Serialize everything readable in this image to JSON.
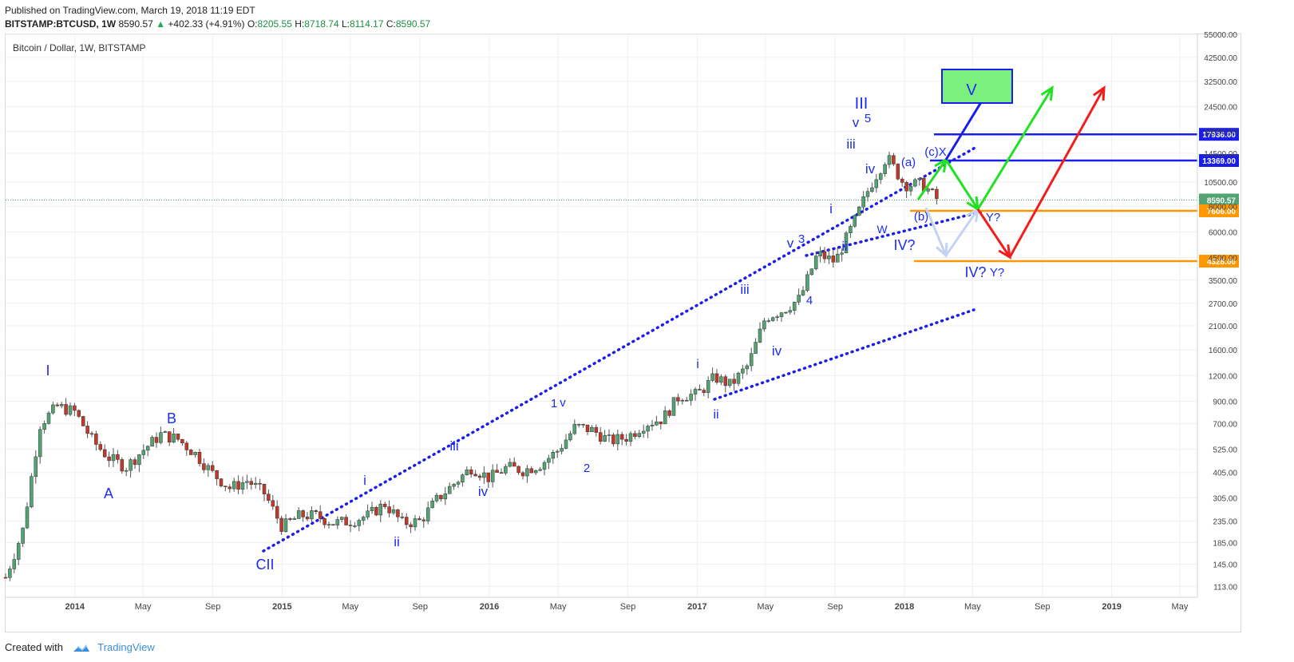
{
  "header": {
    "published": "Published on TradingView.com, March 19, 2018 11:19 EDT",
    "symbol": "BITSTAMP:BTCUSD, 1W",
    "last": "8590.57",
    "change": "+402.33 (+4.91%)",
    "o_label": "O:",
    "o_value": "8205.55",
    "h_label": "H:",
    "h_value": "8718.74",
    "l_label": "L:",
    "l_value": "8114.17",
    "c_label": "C:",
    "c_value": "8590.57"
  },
  "footer": {
    "created_with": "Created with",
    "brand": "TradingView"
  },
  "colors": {
    "up": "#53a373",
    "down": "#c0392b",
    "blue_label": "#1d2cf0",
    "orange": "#ff9800",
    "blue_line": "#1a1ee8",
    "green": "#22e022",
    "red": "#f21d1d",
    "light_blue": "#c4d3f2"
  },
  "chart_data": {
    "type": "candlestick",
    "title": "Bitcoin / Dollar, 1W, BITSTAMP",
    "scale": "log",
    "ylim": [
      100,
      55000
    ],
    "y_ticks": [
      "55000.00",
      "42500.00",
      "32500.00",
      "24500.00",
      "18500.00",
      "14500.00",
      "10500.00",
      "8000.00",
      "6000.00",
      "4500.00",
      "3500.00",
      "2700.00",
      "2100.00",
      "1600.00",
      "1200.00",
      "900.00",
      "700.00",
      "525.00",
      "405.00",
      "305.00",
      "235.00",
      "185.00",
      "145.00",
      "113.00"
    ],
    "x_ticks": [
      "2014",
      "May",
      "Sep",
      "2015",
      "May",
      "Sep",
      "2016",
      "May",
      "Sep",
      "2017",
      "May",
      "Sep",
      "2018",
      "May",
      "Sep",
      "2019",
      "May"
    ],
    "x_range": [
      "2013-09",
      "2019-06"
    ],
    "grid": true,
    "price_path": [
      [
        "2013-09",
        125
      ],
      [
        "2013-10",
        210
      ],
      [
        "2013-11",
        700
      ],
      [
        "2013-12",
        850
      ],
      [
        "2014-01",
        800
      ],
      [
        "2014-02",
        580
      ],
      [
        "2014-03",
        480
      ],
      [
        "2014-04",
        430
      ],
      [
        "2014-05",
        520
      ],
      [
        "2014-06",
        620
      ],
      [
        "2014-07",
        590
      ],
      [
        "2014-08",
        500
      ],
      [
        "2014-09",
        400
      ],
      [
        "2014-10",
        340
      ],
      [
        "2014-11",
        370
      ],
      [
        "2014-12",
        320
      ],
      [
        "2015-01",
        220
      ],
      [
        "2015-02",
        250
      ],
      [
        "2015-03",
        250
      ],
      [
        "2015-04",
        230
      ],
      [
        "2015-05",
        235
      ],
      [
        "2015-06",
        250
      ],
      [
        "2015-07",
        285
      ],
      [
        "2015-08",
        230
      ],
      [
        "2015-09",
        235
      ],
      [
        "2015-10",
        300
      ],
      [
        "2015-11",
        360
      ],
      [
        "2015-12",
        430
      ],
      [
        "2016-01",
        380
      ],
      [
        "2016-02",
        430
      ],
      [
        "2016-03",
        415
      ],
      [
        "2016-04",
        445
      ],
      [
        "2016-05",
        520
      ],
      [
        "2016-06",
        680
      ],
      [
        "2016-07",
        650
      ],
      [
        "2016-08",
        575
      ],
      [
        "2016-09",
        605
      ],
      [
        "2016-10",
        700
      ],
      [
        "2016-11",
        740
      ],
      [
        "2016-12",
        960
      ],
      [
        "2017-01",
        970
      ],
      [
        "2017-02",
        1180
      ],
      [
        "2017-03",
        1080
      ],
      [
        "2017-04",
        1350
      ],
      [
        "2017-05",
        2300
      ],
      [
        "2017-06",
        2500
      ],
      [
        "2017-07",
        2850
      ],
      [
        "2017-08",
        4700
      ],
      [
        "2017-09",
        4300
      ],
      [
        "2017-10",
        6400
      ],
      [
        "2017-11",
        10000
      ],
      [
        "2017-12",
        14000
      ],
      [
        "2018-01",
        10200
      ],
      [
        "2018-02",
        10300
      ],
      [
        "2018-03",
        8590.57
      ]
    ],
    "horizontal_levels": [
      {
        "label": "17936.00",
        "value": 17936,
        "color": "#1a1ee8"
      },
      {
        "label": "13369.00",
        "value": 13369,
        "color": "#1a1ee8"
      },
      {
        "label": "7606.00",
        "value": 7606,
        "color": "#ff9800"
      },
      {
        "label": "4328.00",
        "value": 4328,
        "color": "#ff9800"
      }
    ],
    "last_price_label": "8590.57",
    "annotations": [
      "I",
      "A",
      "B",
      "CII",
      "i",
      "ii",
      "iii",
      "iv",
      "1",
      "v",
      "2",
      "i",
      "ii",
      "iii",
      "iv",
      "v",
      "3",
      "4",
      "i",
      "ii",
      "iii",
      "iv",
      "v",
      "5",
      "III",
      "(a)",
      "(b)",
      "(c)X",
      "W",
      "IV?",
      "IV?",
      "Y?",
      "Y?",
      "V"
    ]
  }
}
